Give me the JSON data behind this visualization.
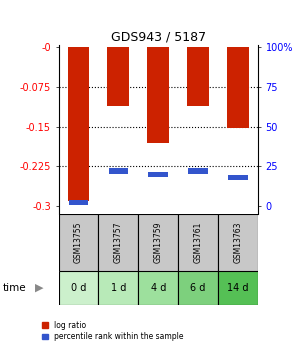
{
  "title": "GDS943 / 5187",
  "samples": [
    "GSM13755",
    "GSM13757",
    "GSM13759",
    "GSM13761",
    "GSM13763"
  ],
  "time_labels": [
    "0 d",
    "1 d",
    "4 d",
    "6 d",
    "14 d"
  ],
  "log_ratio": [
    -0.29,
    -0.11,
    -0.18,
    -0.11,
    -0.152
  ],
  "percentile": [
    2.0,
    22.0,
    20.0,
    22.0,
    18.0
  ],
  "left_yticks": [
    0,
    -0.075,
    -0.15,
    -0.225,
    -0.3
  ],
  "left_yticklabels": [
    "-0",
    "-0.075",
    "-0.15",
    "-0.225",
    "-0.3"
  ],
  "right_yticks": [
    100,
    75,
    50,
    25,
    0
  ],
  "right_yticklabels": [
    "100%",
    "75",
    "50",
    "25",
    "0"
  ],
  "ylim_left": [
    -0.315,
    0.005
  ],
  "bar_color_red": "#cc2200",
  "bar_color_blue": "#3355cc",
  "sample_bg_color": "#c8c8c8",
  "time_bg_colors": [
    "#ccf0cc",
    "#b8eab8",
    "#9de09d",
    "#7dd07d",
    "#55c055"
  ],
  "legend_red": "log ratio",
  "legend_blue": "percentile rank within the sample",
  "bar_width": 0.55,
  "blue_bar_height": 0.01
}
